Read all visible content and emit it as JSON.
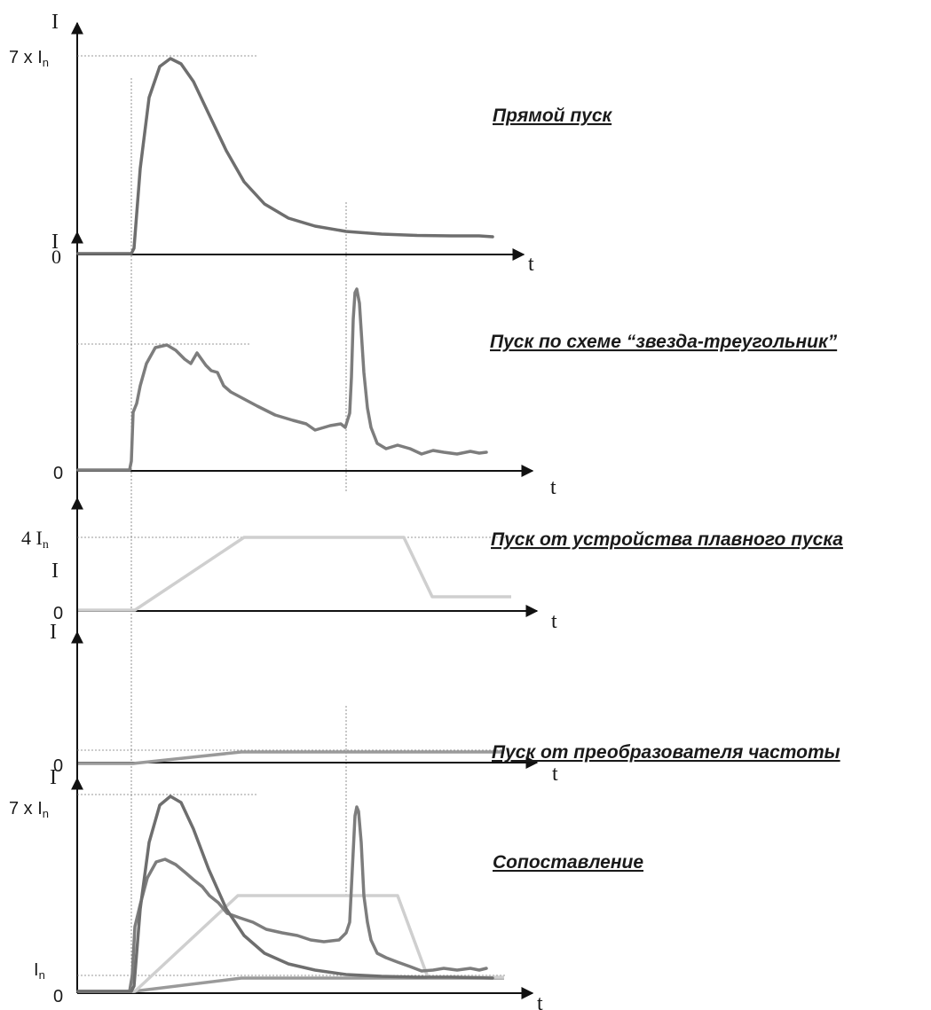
{
  "panels": {
    "dol": {
      "title": "Прямой пуск",
      "y_axis": "I",
      "x_axis": "t",
      "zero": "0",
      "peak_label": "7 x I",
      "peak_sub": "n",
      "extra_label": "I"
    },
    "star_delta": {
      "title": "Пуск по схеме “звезда-треугольник”",
      "x_axis": "t",
      "zero": "0"
    },
    "soft_starter": {
      "title": "Пуск от устройства плавного пуска",
      "y_axis": "I",
      "x_axis": "t",
      "zero": "0",
      "level_label": "4 I",
      "level_sub": "n"
    },
    "vfd": {
      "title": "Пуск от преобразователя частоты",
      "y_axis": "I",
      "x_axis": "t",
      "zero": "0"
    },
    "comparison": {
      "title": "Сопоставление",
      "y_axis": "I",
      "x_axis": "t",
      "zero": "0",
      "peak_label": "7 x I",
      "peak_sub": "n",
      "rated_label": "I",
      "rated_sub": "n"
    }
  },
  "colors": {
    "direct_online": "#6e6e6e",
    "star_delta": "#7d7d7d",
    "soft_starter": "#cfcfcf",
    "frequency_converter": "#9a9a9a"
  }
}
